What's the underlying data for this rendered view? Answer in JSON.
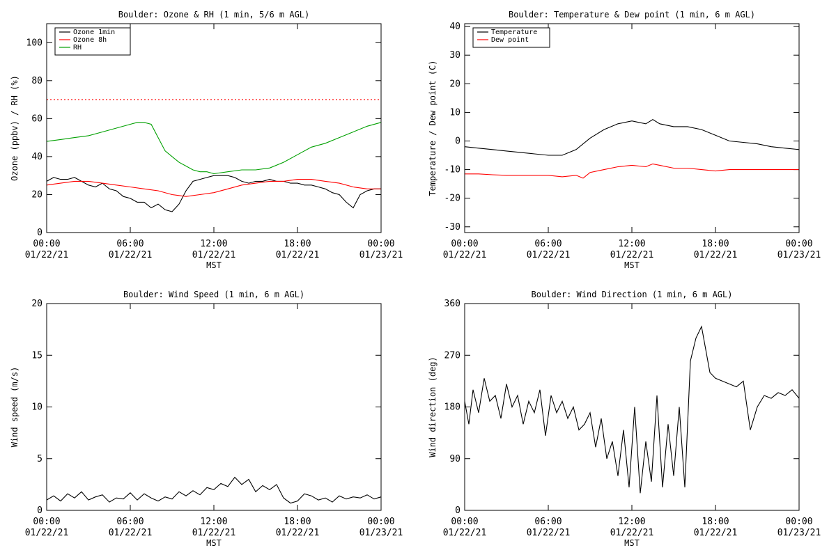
{
  "chart_data": [
    {
      "type": "line",
      "title": "Boulder: Ozone & RH (1 min, 5/6 m AGL)",
      "xlabel": "MST",
      "ylabel": "Ozone (ppbv) / RH (%)",
      "ylim": [
        0,
        110
      ],
      "yticks": [
        "0",
        "20",
        "40",
        "60",
        "80",
        "100"
      ],
      "xticks": [
        {
          "time": "00:00",
          "date": "01/22/21"
        },
        {
          "time": "06:00",
          "date": "01/22/21"
        },
        {
          "time": "12:00",
          "date": "01/22/21"
        },
        {
          "time": "18:00",
          "date": "01/22/21"
        },
        {
          "time": "00:00",
          "date": "01/23/21"
        }
      ],
      "legend_position": "top-left",
      "reference_line": {
        "value": 70,
        "color": "#ff0000",
        "style": "dotted"
      },
      "series": [
        {
          "name": "Ozone 1min",
          "color": "#000000",
          "x": [
            0,
            0.5,
            1,
            1.5,
            2,
            2.5,
            3,
            3.5,
            4,
            4.5,
            5,
            5.5,
            6,
            6.5,
            7,
            7.5,
            8,
            8.5,
            9,
            9.5,
            10,
            10.5,
            11,
            11.5,
            12,
            12.5,
            13,
            13.5,
            14,
            14.5,
            15,
            15.5,
            16,
            16.5,
            17,
            17.5,
            18,
            18.5,
            19,
            19.5,
            20,
            20.5,
            21,
            21.5,
            22,
            22.5,
            23,
            23.5,
            24
          ],
          "y": [
            27,
            29,
            28,
            28,
            29,
            27,
            25,
            24,
            26,
            23,
            22,
            19,
            18,
            16,
            16,
            13,
            15,
            12,
            11,
            15,
            22,
            27,
            28,
            29,
            30,
            30,
            30,
            29,
            27,
            26,
            27,
            27,
            28,
            27,
            27,
            26,
            26,
            25,
            25,
            24,
            23,
            21,
            20,
            16,
            13,
            20,
            22,
            23,
            23
          ]
        },
        {
          "name": "Ozone 8h",
          "color": "#ff0000",
          "x": [
            0,
            1,
            2,
            3,
            4,
            5,
            6,
            7,
            8,
            9,
            10,
            11,
            12,
            13,
            14,
            15,
            16,
            17,
            18,
            19,
            20,
            21,
            22,
            23,
            24
          ],
          "y": [
            25,
            26,
            27,
            27,
            26,
            25,
            24,
            23,
            22,
            20,
            19,
            20,
            21,
            23,
            25,
            26,
            27,
            27,
            28,
            28,
            27,
            26,
            24,
            23,
            23
          ]
        },
        {
          "name": "RH",
          "color": "#00a000",
          "x": [
            0,
            1,
            2,
            3,
            4,
            5,
            6,
            6.5,
            7,
            7.5,
            8,
            8.5,
            9,
            9.5,
            10,
            10.5,
            11,
            11.5,
            12,
            13,
            14,
            15,
            16,
            17,
            18,
            19,
            20,
            21,
            22,
            23,
            24
          ],
          "y": [
            48,
            49,
            50,
            51,
            53,
            55,
            57,
            58,
            58,
            57,
            50,
            43,
            40,
            37,
            35,
            33,
            32,
            32,
            31,
            32,
            33,
            33,
            34,
            37,
            41,
            45,
            47,
            50,
            53,
            56,
            58
          ]
        }
      ]
    },
    {
      "type": "line",
      "title": "Boulder: Temperature & Dew point (1 min, 6 m AGL)",
      "xlabel": "MST",
      "ylabel": "Temperature / Dew point (C)",
      "ylim": [
        -32,
        41
      ],
      "yticks": [
        "-30",
        "-20",
        "-10",
        "0",
        "10",
        "20",
        "30",
        "40"
      ],
      "xticks": [
        {
          "time": "00:00",
          "date": "01/22/21"
        },
        {
          "time": "06:00",
          "date": "01/22/21"
        },
        {
          "time": "12:00",
          "date": "01/22/21"
        },
        {
          "time": "18:00",
          "date": "01/22/21"
        },
        {
          "time": "00:00",
          "date": "01/23/21"
        }
      ],
      "legend_position": "top-left",
      "series": [
        {
          "name": "Temperature",
          "color": "#000000",
          "x": [
            0,
            1,
            2,
            3,
            4,
            5,
            6,
            7,
            8,
            9,
            10,
            11,
            12,
            12.5,
            13,
            13.5,
            14,
            15,
            16,
            17,
            18,
            19,
            20,
            21,
            22,
            23,
            24
          ],
          "y": [
            -2,
            -2.5,
            -3,
            -3.5,
            -4,
            -4.5,
            -5,
            -5,
            -3,
            1,
            4,
            6,
            7,
            6.5,
            6,
            7.5,
            6,
            5,
            5,
            4,
            2,
            0,
            -0.5,
            -1,
            -2,
            -2.5,
            -3
          ]
        },
        {
          "name": "Dew point",
          "color": "#ff0000",
          "x": [
            0,
            1,
            2,
            3,
            4,
            5,
            6,
            7,
            8,
            8.5,
            9,
            10,
            11,
            12,
            13,
            13.5,
            14,
            15,
            16,
            17,
            18,
            19,
            20,
            21,
            22,
            23,
            24
          ],
          "y": [
            -11.5,
            -11.5,
            -11.8,
            -12,
            -12,
            -12,
            -12,
            -12.5,
            -12,
            -13,
            -11,
            -10,
            -9,
            -8.5,
            -9,
            -8,
            -8.5,
            -9.5,
            -9.5,
            -10,
            -10.5,
            -10,
            -10,
            -10,
            -10,
            -10,
            -10
          ]
        }
      ]
    },
    {
      "type": "line",
      "title": "Boulder: Wind Speed (1 min, 6 m AGL)",
      "xlabel": "MST",
      "ylabel": "Wind speed (m/s)",
      "ylim": [
        0,
        20
      ],
      "yticks": [
        "0",
        "5",
        "10",
        "15",
        "20"
      ],
      "xticks": [
        {
          "time": "00:00",
          "date": "01/22/21"
        },
        {
          "time": "06:00",
          "date": "01/22/21"
        },
        {
          "time": "12:00",
          "date": "01/22/21"
        },
        {
          "time": "18:00",
          "date": "01/22/21"
        },
        {
          "time": "00:00",
          "date": "01/23/21"
        }
      ],
      "series": [
        {
          "color": "#000000",
          "x": [
            0,
            0.5,
            1,
            1.5,
            2,
            2.5,
            3,
            3.5,
            4,
            4.5,
            5,
            5.5,
            6,
            6.5,
            7,
            7.5,
            8,
            8.5,
            9,
            9.5,
            10,
            10.5,
            11,
            11.5,
            12,
            12.5,
            13,
            13.5,
            14,
            14.5,
            15,
            15.5,
            16,
            16.5,
            17,
            17.5,
            18,
            18.5,
            19,
            19.5,
            20,
            20.5,
            21,
            21.5,
            22,
            22.5,
            23,
            23.5,
            24
          ],
          "y": [
            1,
            1.4,
            0.9,
            1.6,
            1.2,
            1.8,
            1,
            1.3,
            1.5,
            0.8,
            1.2,
            1.1,
            1.7,
            1,
            1.6,
            1.2,
            0.9,
            1.3,
            1.1,
            1.8,
            1.4,
            1.9,
            1.5,
            2.2,
            2,
            2.6,
            2.3,
            3.2,
            2.5,
            3,
            1.8,
            2.4,
            2,
            2.5,
            1.2,
            0.7,
            0.9,
            1.6,
            1.4,
            1,
            1.2,
            0.8,
            1.4,
            1.1,
            1.3,
            1.2,
            1.5,
            1.1,
            1.3
          ]
        }
      ]
    },
    {
      "type": "line",
      "title": "Boulder: Wind Direction (1 min, 6 m AGL)",
      "xlabel": "MST",
      "ylabel": "Wind direction (deg)",
      "ylim": [
        0,
        360
      ],
      "yticks": [
        "0",
        "90",
        "180",
        "270",
        "360"
      ],
      "xticks": [
        {
          "time": "00:00",
          "date": "01/22/21"
        },
        {
          "time": "06:00",
          "date": "01/22/21"
        },
        {
          "time": "12:00",
          "date": "01/22/21"
        },
        {
          "time": "18:00",
          "date": "01/22/21"
        },
        {
          "time": "00:00",
          "date": "01/23/21"
        }
      ],
      "series": [
        {
          "color": "#000000",
          "x": [
            0,
            0.3,
            0.6,
            1,
            1.4,
            1.8,
            2.2,
            2.6,
            3,
            3.4,
            3.8,
            4.2,
            4.6,
            5,
            5.4,
            5.8,
            6.2,
            6.6,
            7,
            7.4,
            7.8,
            8.2,
            8.6,
            9,
            9.4,
            9.8,
            10.2,
            10.6,
            11,
            11.4,
            11.8,
            12.2,
            12.6,
            13,
            13.4,
            13.8,
            14.2,
            14.6,
            15,
            15.4,
            15.8,
            16.2,
            16.6,
            17,
            17.3,
            17.6,
            18,
            18.5,
            19,
            19.5,
            20,
            20.5,
            21,
            21.5,
            22,
            22.5,
            23,
            23.5,
            24
          ],
          "y": [
            190,
            150,
            210,
            170,
            230,
            190,
            200,
            160,
            220,
            180,
            200,
            150,
            190,
            170,
            210,
            130,
            200,
            170,
            190,
            160,
            180,
            140,
            150,
            170,
            110,
            160,
            90,
            120,
            60,
            140,
            40,
            180,
            30,
            120,
            50,
            200,
            40,
            150,
            60,
            180,
            40,
            260,
            300,
            320,
            280,
            240,
            230,
            225,
            220,
            215,
            225,
            140,
            180,
            200,
            195,
            205,
            200,
            210,
            195
          ]
        }
      ]
    }
  ]
}
